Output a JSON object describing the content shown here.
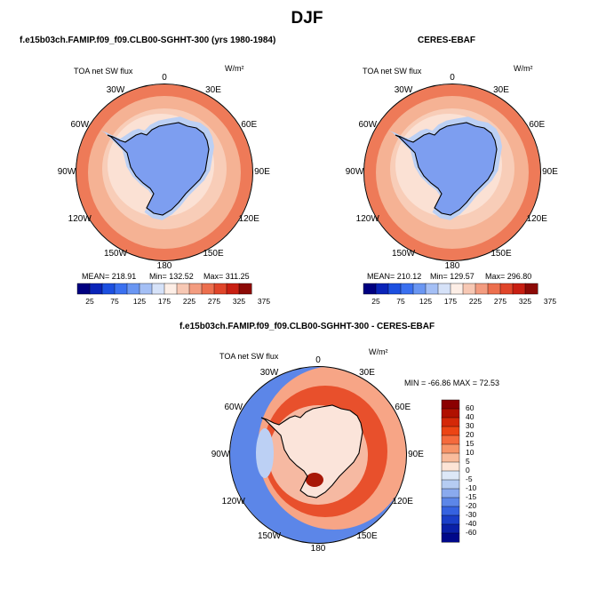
{
  "main_title": "DJF",
  "panels": [
    {
      "title": "f.e15b03ch.FAMIP.f09_f09.CLB00-SGHHT-300 (yrs 1980-1984)",
      "variable": "TOA net SW flux",
      "units": "W/m²",
      "stats": {
        "mean": "MEAN= 218.91",
        "min": "Min= 132.52",
        "max": "Max= 311.25"
      }
    },
    {
      "title": "CERES-EBAF",
      "variable": "TOA net SW flux",
      "units": "W/m²",
      "stats": {
        "mean": "MEAN= 210.12",
        "min": "Min= 129.57",
        "max": "Max= 296.80"
      }
    }
  ],
  "diff_panel": {
    "title": "f.e15b03ch.FAMIP.f09_f09.CLB00-SGHHT-300 - CERES-EBAF",
    "variable": "TOA net SW flux",
    "units": "W/m²",
    "minmax": "MIN = -66.86  MAX =  72.53"
  },
  "longitude_labels": [
    "0",
    "30E",
    "60E",
    "90E",
    "120E",
    "150E",
    "180",
    "150W",
    "120W",
    "90W",
    "60W",
    "30W"
  ],
  "abs_colorbar": {
    "colors": [
      "#000080",
      "#0a24b8",
      "#1c4fe0",
      "#3a70f0",
      "#6a96f2",
      "#a4bff5",
      "#d6e2f8",
      "#fdeee6",
      "#f7c8b4",
      "#f39c80",
      "#ec6f4e",
      "#e0452a",
      "#c81f12",
      "#8c0a06"
    ],
    "tick_labels": [
      "25",
      "75",
      "125",
      "175",
      "225",
      "275",
      "325",
      "375"
    ]
  },
  "diff_colorbar": {
    "colors": [
      "#8b0000",
      "#b01000",
      "#d42808",
      "#ec4414",
      "#f56a3c",
      "#f79468",
      "#f9bc9c",
      "#fde4d6",
      "#dde8f7",
      "#b5ccf2",
      "#8aaaee",
      "#5c86e8",
      "#3562e0",
      "#1a3ec8",
      "#0a20a8",
      "#00088a"
    ],
    "labels": [
      "60",
      "40",
      "30",
      "20",
      "15",
      "10",
      "5",
      "0",
      "-5",
      "-10",
      "-15",
      "-20",
      "-30",
      "-40",
      "-60"
    ]
  },
  "colors": {
    "ocean_warm": "#f5b294",
    "ocean_hot": "#ee7a58",
    "antarctica": "#7d9ef0",
    "sea_ice": "#bcd0f4",
    "diff_warm": "#e8502c",
    "diff_neutral": "#fbe4da",
    "diff_cool": "#5c86e8"
  }
}
